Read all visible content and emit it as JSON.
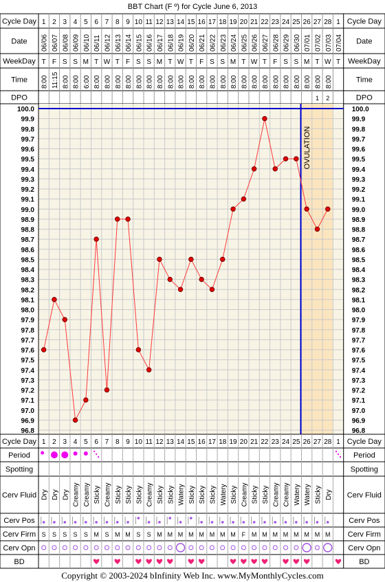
{
  "title": "BBT Chart (F º) for Cycle June 6, 2013",
  "row_labels": {
    "cycle_day": "Cycle Day",
    "date": "Date",
    "weekday": "WeekDay",
    "time": "Time",
    "dpo": "DPO",
    "period": "Period",
    "spotting": "Spotting",
    "cerv_fluid": "Cerv Fluid",
    "cerv_pos": "Cerv Pos",
    "cerv_firm": "Cerv Firm",
    "cerv_opn": "Cerv Opn",
    "bd": "BD"
  },
  "chart_data": {
    "type": "line",
    "cycle_days": [
      1,
      2,
      3,
      4,
      5,
      6,
      7,
      8,
      9,
      10,
      11,
      12,
      13,
      14,
      15,
      16,
      17,
      18,
      19,
      20,
      21,
      22,
      23,
      24,
      25,
      26,
      27,
      28,
      1
    ],
    "dates": [
      "06/06",
      "06/07",
      "06/08",
      "06/09",
      "06/10",
      "06/11",
      "06/12",
      "06/13",
      "06/14",
      "06/15",
      "06/16",
      "06/17",
      "06/18",
      "06/19",
      "06/20",
      "06/21",
      "06/22",
      "06/23",
      "06/24",
      "06/25",
      "06/26",
      "06/27",
      "06/28",
      "06/29",
      "06/30",
      "07/01",
      "07/02",
      "07/03",
      "07/04"
    ],
    "weekdays": [
      "T",
      "F",
      "S",
      "S",
      "M",
      "T",
      "W",
      "T",
      "F",
      "S",
      "S",
      "M",
      "T",
      "W",
      "T",
      "F",
      "S",
      "S",
      "M",
      "T",
      "W",
      "T",
      "F",
      "S",
      "S",
      "M",
      "T",
      "W",
      "T"
    ],
    "times": [
      "8:00",
      "11:15",
      "8:00",
      "8:00",
      "6:00",
      "8:00",
      "8:00",
      "8:00",
      "8:00",
      "8:00",
      "8:00",
      "8:00",
      "8:00",
      "8:00",
      "8:00",
      "8:00",
      "8:00",
      "8:00",
      "8:00",
      "8:00",
      "8:00",
      "8:00",
      "8:00",
      "8:00",
      "8:00",
      "8:00",
      "8:00",
      "8:00",
      ""
    ],
    "dpo": [
      "",
      "",
      "",
      "",
      "",
      "",
      "",
      "",
      "",
      "",
      "",
      "",
      "",
      "",
      "",
      "",
      "",
      "",
      "",
      "",
      "",
      "",
      "",
      "",
      "",
      "",
      "1",
      "2",
      ""
    ],
    "temperatures": [
      97.6,
      98.1,
      97.9,
      96.9,
      97.1,
      98.7,
      97.2,
      98.9,
      98.9,
      97.6,
      97.4,
      98.5,
      98.3,
      98.2,
      98.5,
      98.3,
      98.2,
      98.5,
      99.0,
      99.1,
      99.4,
      99.9,
      99.4,
      99.5,
      99.5,
      99.0,
      98.8,
      99.0,
      null
    ],
    "ylim": [
      96.8,
      100.0
    ],
    "y_ticks": [
      "100.0",
      "99.9",
      "99.8",
      "99.7",
      "99.6",
      "99.5",
      "99.4",
      "99.3",
      "99.2",
      "99.1",
      "99.0",
      "98.9",
      "98.8",
      "98.7",
      "98.6",
      "98.5",
      "98.4",
      "98.3",
      "98.2",
      "98.1",
      "98.0",
      "97.9",
      "97.8",
      "97.7",
      "97.6",
      "97.5",
      "97.4",
      "97.3",
      "97.2",
      "97.1",
      "97.0",
      "96.9",
      "96.8"
    ],
    "coverline": 100.0,
    "ovulation_day_index": 25,
    "ovulation_label": "OVULATION",
    "period": [
      "light",
      "heavy",
      "heavy",
      "medium",
      "medium",
      "spotting",
      "",
      "",
      "",
      "",
      "",
      "",
      "",
      "",
      "",
      "",
      "",
      "",
      "",
      "",
      "",
      "",
      "",
      "",
      "",
      "",
      "",
      "",
      "spotting"
    ],
    "spotting": [
      "",
      "",
      "",
      "",
      "",
      "",
      "",
      "",
      "",
      "",
      "",
      "",
      "",
      "",
      "",
      "",
      "",
      "",
      "",
      "",
      "",
      "",
      "",
      "",
      "",
      "",
      "",
      "",
      ""
    ],
    "cerv_fluid": [
      "Dry",
      "Dry",
      "Dry",
      "Creamy",
      "Creamy",
      "Sticky",
      "Creamy",
      "Sticky",
      "Sticky",
      "Sticky",
      "Creamy",
      "Sticky",
      "Sticky",
      "Watery",
      "Sticky",
      "Sticky",
      "Sticky",
      "Watery",
      "Sticky",
      "Creamy",
      "Sticky",
      "Sticky",
      "Creamy",
      "Creamy",
      "Watery",
      "Watery",
      "Sticky",
      "Dry",
      ""
    ],
    "cerv_pos": [
      "low",
      "low",
      "low",
      "low",
      "low",
      "low",
      "low",
      "low",
      "low",
      "medium",
      "low",
      "low",
      "medium",
      "low",
      "medium",
      "low",
      "low",
      "low",
      "low",
      "low",
      "low",
      "low",
      "low",
      "low",
      "low",
      "low",
      "low",
      "low",
      ""
    ],
    "cerv_firm": [
      "S",
      "S",
      "S",
      "S",
      "S",
      "M",
      "S",
      "M",
      "M",
      "S",
      "S",
      "M",
      "M",
      "M",
      "M",
      "M",
      "M",
      "M",
      "M",
      "F",
      "M",
      "M",
      "M",
      "M",
      "M",
      "M",
      "M",
      "M",
      ""
    ],
    "cerv_opn": [
      "closed",
      "closed",
      "closed",
      "closed",
      "closed",
      "closed",
      "closed",
      "closed",
      "closed",
      "closed",
      "closed",
      "closed",
      "closed",
      "open",
      "closed",
      "closed",
      "closed",
      "closed",
      "closed",
      "closed",
      "closed",
      "closed",
      "closed",
      "closed",
      "closed",
      "open",
      "closed",
      "open",
      ""
    ],
    "bd": [
      false,
      false,
      false,
      false,
      false,
      true,
      false,
      true,
      false,
      true,
      true,
      true,
      true,
      false,
      true,
      true,
      false,
      false,
      true,
      true,
      true,
      true,
      false,
      true,
      true,
      true,
      false,
      false,
      true
    ]
  },
  "colors": {
    "line": "#ff3a3a",
    "point": "#e00000",
    "plot_bg": "#f7f4e6",
    "grid": "#c9c9c9",
    "coverline": "#0000cc",
    "ovulation": "#0000cc",
    "post_ov_bg": "#fbe5bf",
    "period": "#ee00ee",
    "cervix": "#a050e0"
  },
  "footer": "Copyright © 2003-2024 bInfinity Web Inc.     www.MyMonthlyCycles.com"
}
